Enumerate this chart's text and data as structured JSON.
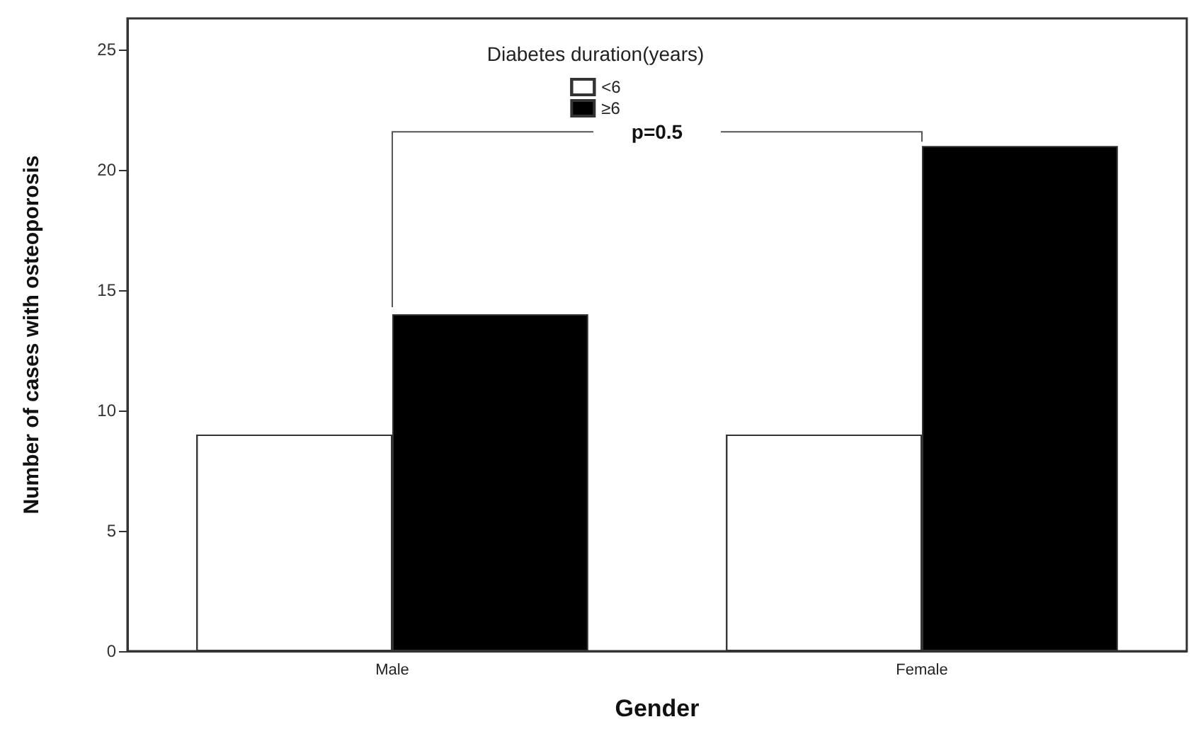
{
  "chart_data": {
    "type": "bar",
    "xlabel": "Gender",
    "ylabel": "Number of cases with osteoporosis",
    "legend_title": "Diabetes duration(years)",
    "categories": [
      "Male",
      "Female"
    ],
    "series": [
      {
        "name": "<6",
        "color": "#ffffff",
        "values": [
          9,
          9
        ]
      },
      {
        "name": "≥6",
        "color": "#000000",
        "values": [
          14,
          21
        ]
      }
    ],
    "ylim": [
      0,
      26.3
    ],
    "yticks": [
      0,
      5,
      10,
      15,
      20,
      25
    ],
    "grid": false,
    "legend": "top",
    "annotations": [
      "p=0.5"
    ]
  }
}
